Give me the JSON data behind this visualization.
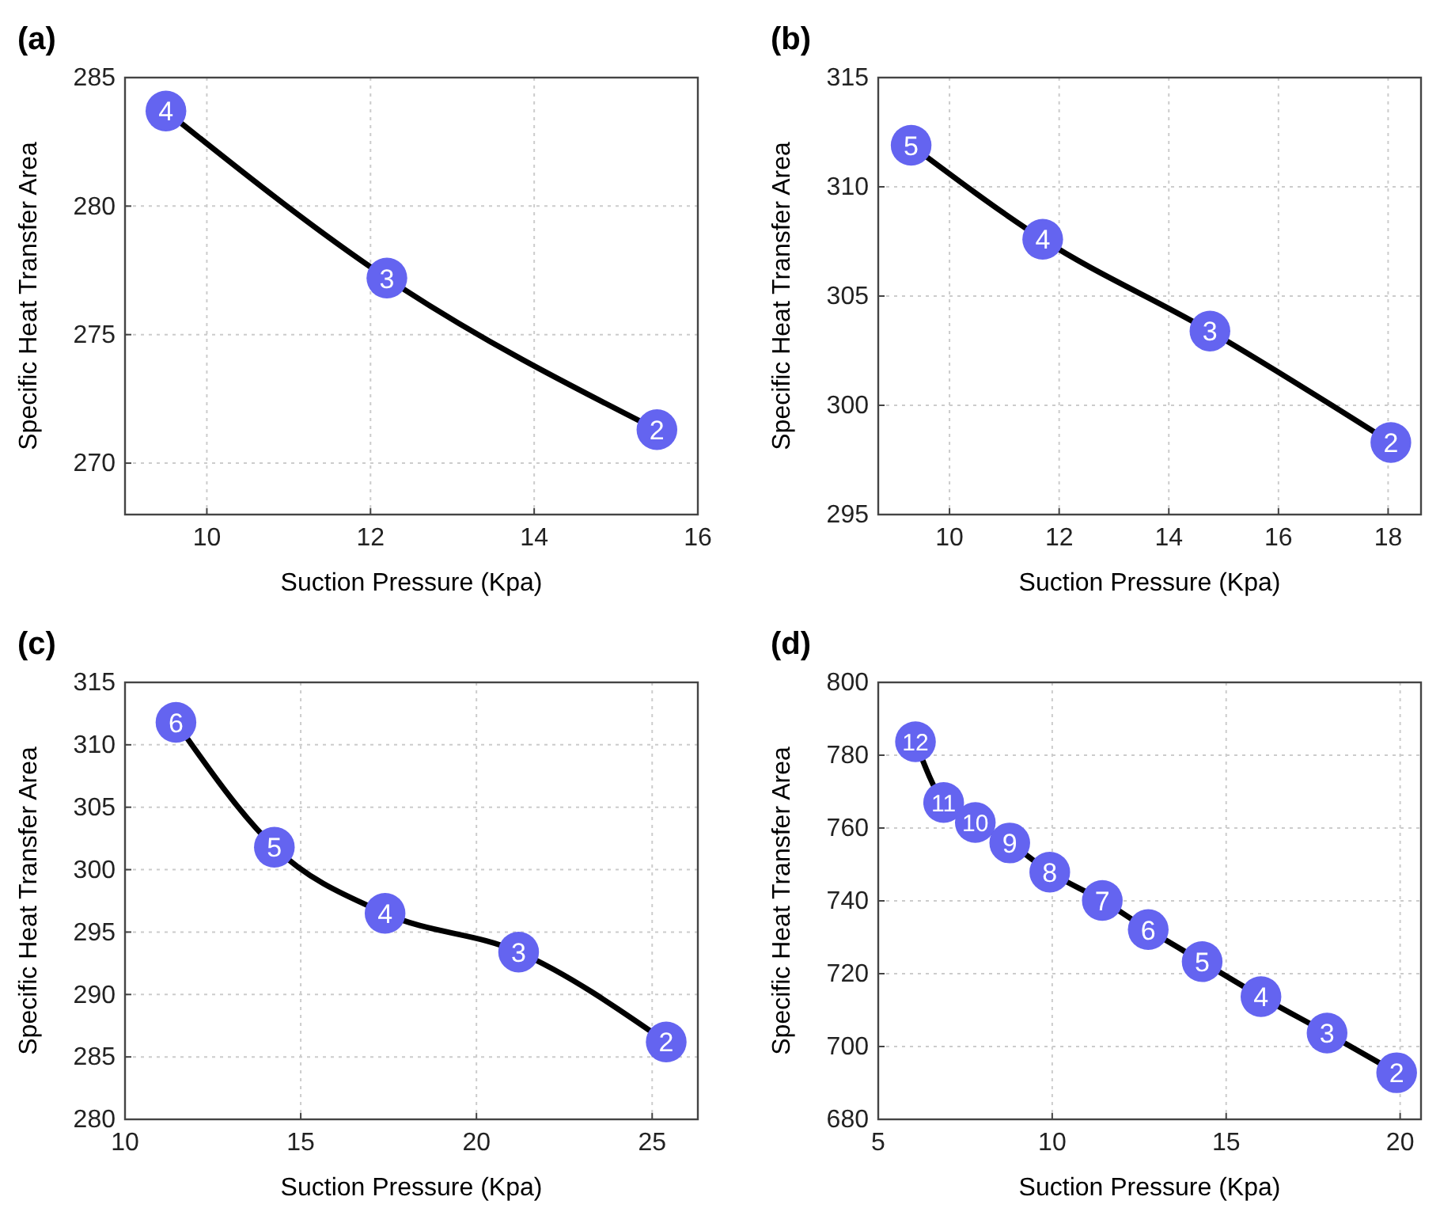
{
  "chart_data": [
    {
      "type": "line",
      "title": "(a)",
      "xlabel": "Suction Pressure (Kpa)",
      "ylabel": "Specific Heat Transfer Area",
      "xlim": [
        9,
        16
      ],
      "xticks": [
        10,
        12,
        14,
        16
      ],
      "ylim": [
        268,
        285
      ],
      "yticks": [
        270,
        275,
        280,
        285
      ],
      "grid": true,
      "marker": "circle",
      "line_style": "solid",
      "series": [
        {
          "color": "#000000",
          "colors": [
            "#6464f0",
            "#6464f0",
            "#6464f0"
          ],
          "x": [
            9.5,
            12.2,
            15.5
          ],
          "values": [
            283.7,
            277.2,
            271.3
          ]
        }
      ],
      "annotations": [
        {
          "text": "4",
          "x": 9.5,
          "y": 283.7
        },
        {
          "text": "3",
          "x": 12.2,
          "y": 277.2
        },
        {
          "text": "2",
          "x": 15.5,
          "y": 271.3
        }
      ]
    },
    {
      "type": "line",
      "title": "(b)",
      "xlabel": "Suction Pressure (Kpa)",
      "ylabel": "Specific Heat Transfer Area",
      "xlim": [
        8.7,
        18.6
      ],
      "xticks": [
        10,
        12,
        14,
        16,
        18
      ],
      "ylim": [
        295,
        315
      ],
      "yticks": [
        295,
        300,
        305,
        310,
        315
      ],
      "grid": true,
      "marker": "circle",
      "line_style": "solid",
      "series": [
        {
          "color": "#000000",
          "colors": [
            "#6464f0",
            "#6464f0",
            "#6464f0",
            "#6464f0"
          ],
          "x": [
            9.3,
            11.7,
            14.75,
            18.05
          ],
          "values": [
            311.9,
            307.6,
            303.4,
            298.3
          ]
        }
      ],
      "annotations": [
        {
          "text": "5",
          "x": 9.3,
          "y": 311.9
        },
        {
          "text": "4",
          "x": 11.7,
          "y": 307.6
        },
        {
          "text": "3",
          "x": 14.75,
          "y": 303.4
        },
        {
          "text": "2",
          "x": 18.05,
          "y": 298.3
        }
      ]
    },
    {
      "type": "line",
      "title": "(c)",
      "xlabel": "Suction Pressure (Kpa)",
      "ylabel": "Specific Heat Transfer Area",
      "xlim": [
        10,
        26.3
      ],
      "xticks": [
        10,
        15,
        20,
        25
      ],
      "ylim": [
        280,
        315
      ],
      "yticks": [
        280,
        285,
        290,
        295,
        300,
        305,
        310,
        315
      ],
      "grid": true,
      "marker": "circle",
      "line_style": "solid",
      "series": [
        {
          "color": "#000000",
          "colors": [
            "#6464f0",
            "#6464f0",
            "#6464f0",
            "#6464f0",
            "#6464f0"
          ],
          "x": [
            11.45,
            14.25,
            17.4,
            21.2,
            25.4
          ],
          "values": [
            311.8,
            301.8,
            296.5,
            293.4,
            286.2
          ]
        }
      ],
      "annotations": [
        {
          "text": "6",
          "x": 11.45,
          "y": 311.8
        },
        {
          "text": "5",
          "x": 14.25,
          "y": 301.8
        },
        {
          "text": "4",
          "x": 17.4,
          "y": 296.5
        },
        {
          "text": "3",
          "x": 21.2,
          "y": 293.4
        },
        {
          "text": "2",
          "x": 25.4,
          "y": 286.2
        }
      ]
    },
    {
      "type": "line",
      "title": "(d)",
      "xlabel": "Suction Pressure (Kpa)",
      "ylabel": "Specific Heat Transfer Area",
      "xlim": [
        5,
        20.6
      ],
      "xticks": [
        5,
        10,
        15,
        20
      ],
      "ylim": [
        680,
        800
      ],
      "yticks": [
        680,
        700,
        720,
        740,
        760,
        780,
        800
      ],
      "grid": true,
      "marker": "circle",
      "line_style": "solid",
      "series": [
        {
          "color": "#000000",
          "colors": [
            "#6464f0",
            "#6464f0",
            "#6464f0",
            "#6464f0",
            "#6464f0",
            "#6464f0",
            "#6464f0",
            "#6464f0",
            "#6464f0",
            "#6464f0",
            "#6464f0"
          ],
          "x": [
            6.07,
            6.88,
            7.79,
            8.78,
            9.93,
            11.44,
            12.76,
            14.31,
            16.0,
            17.9,
            19.9
          ],
          "values": [
            783.7,
            767.0,
            761.5,
            755.9,
            747.9,
            740.1,
            732.1,
            723.3,
            713.7,
            703.7,
            692.8
          ]
        }
      ],
      "annotations": [
        {
          "text": "12",
          "x": 6.07,
          "y": 783.7
        },
        {
          "text": "11",
          "x": 6.88,
          "y": 767.0
        },
        {
          "text": "10",
          "x": 7.79,
          "y": 761.5
        },
        {
          "text": "9",
          "x": 8.78,
          "y": 755.9
        },
        {
          "text": "8",
          "x": 9.93,
          "y": 747.9
        },
        {
          "text": "7",
          "x": 11.44,
          "y": 740.1
        },
        {
          "text": "6",
          "x": 12.76,
          "y": 732.1
        },
        {
          "text": "5",
          "x": 14.31,
          "y": 723.3
        },
        {
          "text": "4",
          "x": 16.0,
          "y": 713.7
        },
        {
          "text": "3",
          "x": 17.9,
          "y": 703.7
        },
        {
          "text": "2",
          "x": 19.9,
          "y": 692.8
        }
      ]
    }
  ]
}
